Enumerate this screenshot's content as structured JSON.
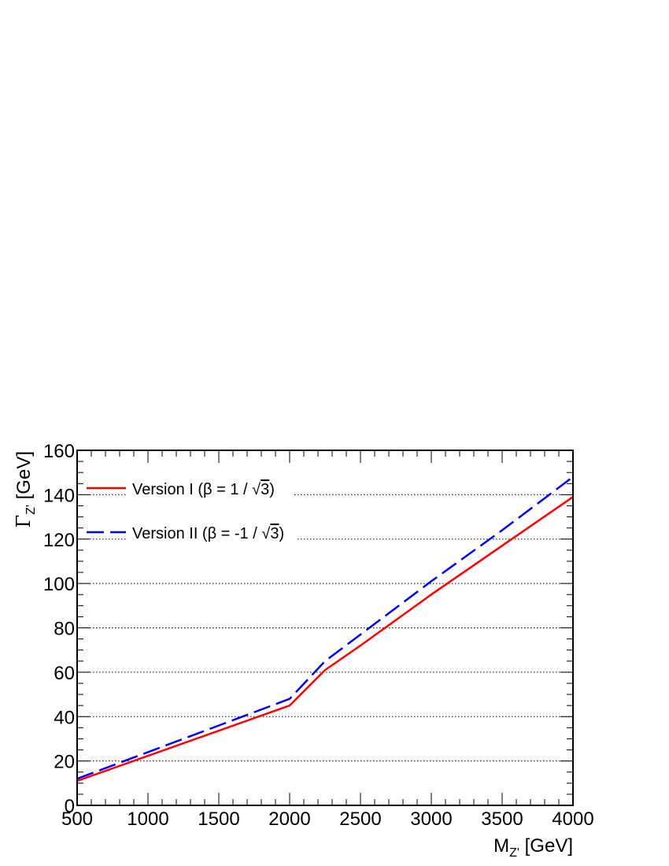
{
  "chart_data": {
    "type": "line",
    "xlabel": {
      "main": "M",
      "sub": "Z'",
      "rest": " [GeV]"
    },
    "ylabel": {
      "main": "Γ",
      "sub": "Z'",
      "rest": " [GeV]"
    },
    "xlim": [
      500,
      4000
    ],
    "ylim": [
      0,
      160
    ],
    "x_ticks": [
      500,
      1000,
      1500,
      2000,
      2500,
      3000,
      3500,
      4000
    ],
    "x_tick_labels": [
      "500",
      "1000",
      "1500",
      "2000",
      "2500",
      "3000",
      "3500",
      "4000"
    ],
    "y_ticks": [
      0,
      20,
      40,
      60,
      80,
      100,
      120,
      140,
      160
    ],
    "y_tick_labels": [
      "0",
      "20",
      "40",
      "60",
      "80",
      "100",
      "120",
      "140",
      "160"
    ],
    "grid": "horizontal dotted",
    "legend_position": "top-left",
    "series": [
      {
        "name": "Version I (β = 1 / √3)",
        "name_parts": {
          "prefix": "Version I (β = 1 / ",
          "sqrt_arg": "3",
          "suffix": ")"
        },
        "color": "#ff0000",
        "style": "solid",
        "x": [
          500,
          2000,
          2250,
          2500,
          3000,
          3500,
          4000
        ],
        "y": [
          11,
          45,
          61,
          72,
          95,
          117,
          139
        ]
      },
      {
        "name": "Version II (β = -1 / √3)",
        "name_parts": {
          "prefix": "Version II (β = -1 / ",
          "sqrt_arg": "3",
          "suffix": ")"
        },
        "color": "#0000ff",
        "style": "dashed",
        "x": [
          500,
          2000,
          2250,
          2500,
          3000,
          3500,
          4000
        ],
        "y": [
          12,
          48,
          65,
          77,
          101,
          124,
          148
        ]
      }
    ]
  }
}
